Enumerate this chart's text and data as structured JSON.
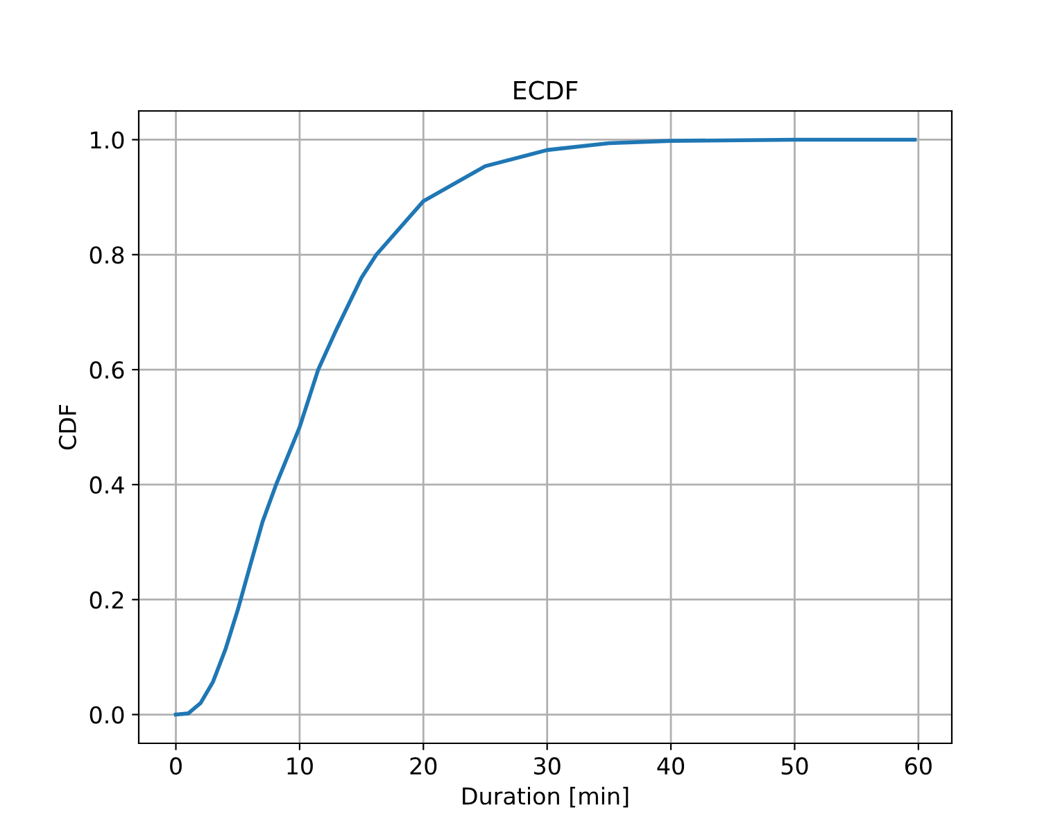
{
  "chart_data": {
    "type": "line",
    "title": "ECDF",
    "xlabel": "Duration [min]",
    "ylabel": "CDF",
    "x": [
      0,
      1,
      2,
      3,
      4,
      5,
      6,
      7,
      8.1,
      10,
      11.5,
      13,
      15,
      16.2,
      20,
      25,
      30,
      35,
      40,
      50,
      59.7
    ],
    "series": [
      {
        "color": "#1f77b4",
        "values": [
          0,
          0.002,
          0.02,
          0.057,
          0.113,
          0.182,
          0.259,
          0.335,
          0.4,
          0.5,
          0.6,
          0.671,
          0.76,
          0.8,
          0.893,
          0.954,
          0.982,
          0.994,
          0.998,
          1.0,
          1.0
        ]
      }
    ],
    "xlim": [
      -3,
      62.7
    ],
    "ylim": [
      -0.05,
      1.05
    ],
    "xticks": [
      0,
      10,
      20,
      30,
      40,
      50,
      60
    ],
    "yticks": [
      {
        "value": 0,
        "label": "0.0"
      },
      {
        "value": 0.2,
        "label": "0.2"
      },
      {
        "value": 0.4,
        "label": "0.4"
      },
      {
        "value": 0.6,
        "label": "0.6"
      },
      {
        "value": 0.8,
        "label": "0.8"
      },
      {
        "value": 1.0,
        "label": "1.0"
      }
    ],
    "grid": true
  }
}
